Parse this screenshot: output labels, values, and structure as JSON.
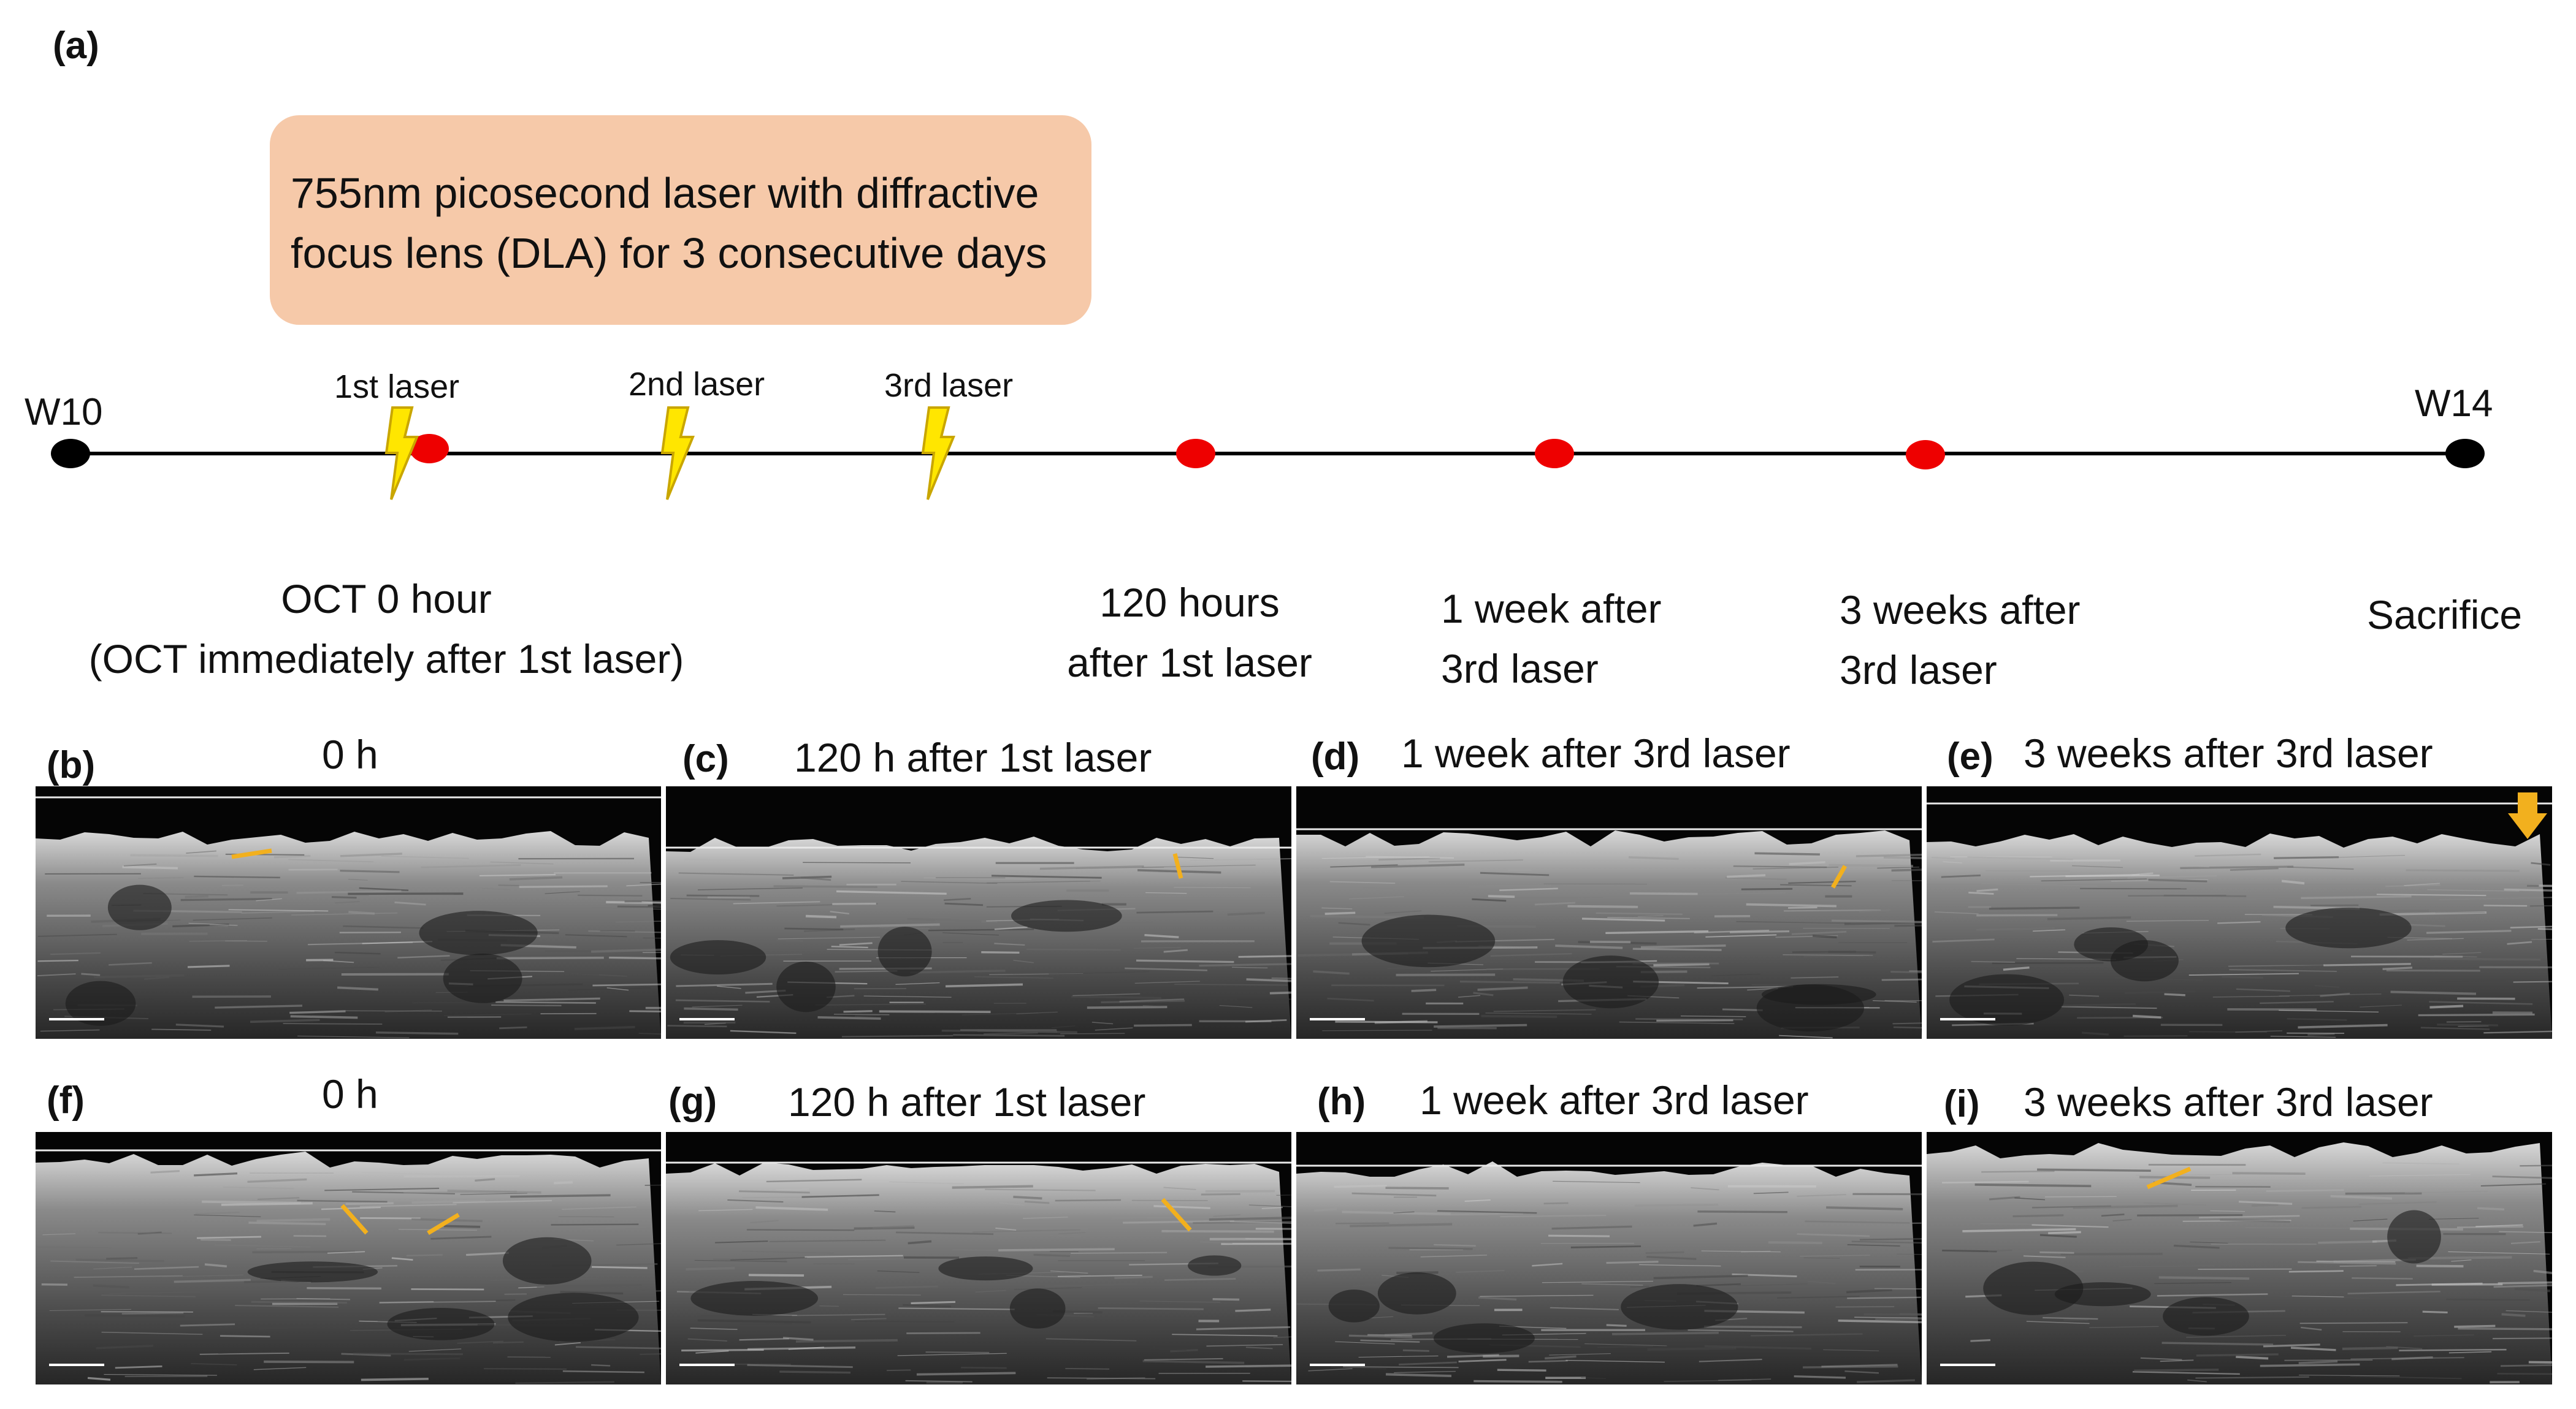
{
  "figure": {
    "panel_a_tag": "(a)",
    "callout": {
      "line1": "755nm picosecond laser with diffractive",
      "line2": "focus lens (DLA) for 3 consecutive days",
      "color": "#f6c9a9"
    },
    "timeline": {
      "start": "W10",
      "end": "W14",
      "lasers": [
        "1st laser",
        "2nd laser",
        "3rd laser"
      ],
      "laser_icon": "lightning-bolt-icon",
      "laser_color": "#ffe600",
      "marker_color": "#ee0000",
      "endpoint_color": "#000000",
      "events": [
        {
          "line1": "OCT 0 hour",
          "line2": "(OCT immediately after 1st laser)"
        },
        {
          "line1": "120 hours",
          "line2": "after 1st laser"
        },
        {
          "line1": "1 week after",
          "line2": "3rd laser"
        },
        {
          "line1": "3 weeks after",
          "line2": "3rd laser"
        },
        {
          "line1": "Sacrifice",
          "line2": ""
        }
      ]
    },
    "panels_top": [
      {
        "tag": "(b)",
        "title": "0 h"
      },
      {
        "tag": "(c)",
        "title": "120 h after 1st laser"
      },
      {
        "tag": "(d)",
        "title": "1 week after 3rd laser"
      },
      {
        "tag": "(e)",
        "title": "3 weeks after 3rd laser"
      }
    ],
    "panels_bottom": [
      {
        "tag": "(f)",
        "title": "0 h"
      },
      {
        "tag": "(g)",
        "title": "120 h after 1st laser"
      },
      {
        "tag": "(h)",
        "title": "1 week after 3rd laser"
      },
      {
        "tag": "(i)",
        "title": "3 weeks after 3rd laser"
      }
    ],
    "annotation_color": "#f2b01e"
  }
}
